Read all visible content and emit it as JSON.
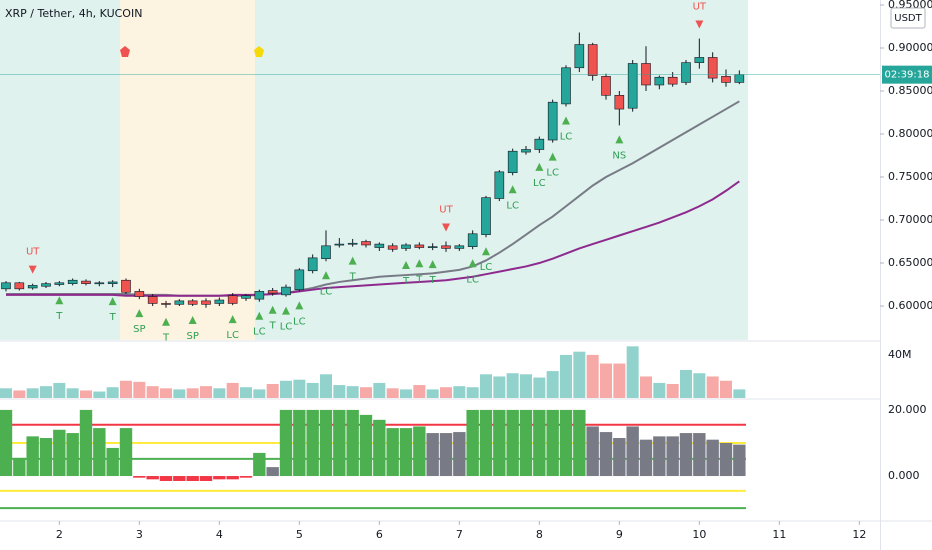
{
  "chart_data": {
    "type": "candlestick",
    "title": "XRP / Tether, 4h, KUCOIN",
    "currency": "USDT",
    "countdown": "02:39:18",
    "xlim": [
      -0.45,
      65.55
    ],
    "xticks": [
      {
        "value": 4,
        "label": "2"
      },
      {
        "value": 10,
        "label": "3"
      },
      {
        "value": 16,
        "label": "4"
      },
      {
        "value": 22,
        "label": "5"
      },
      {
        "value": 28,
        "label": "6"
      },
      {
        "value": 34,
        "label": "7"
      },
      {
        "value": 40,
        "label": "8"
      },
      {
        "value": 46,
        "label": "9"
      },
      {
        "value": 52,
        "label": "10"
      },
      {
        "value": 58,
        "label": "11"
      },
      {
        "value": 64,
        "label": "12"
      }
    ],
    "ylim": [
      0.5605,
      0.9558
    ],
    "yticks": [
      {
        "value": 0.95,
        "label": "0.95000"
      },
      {
        "value": 0.9,
        "label": "0.90000"
      },
      {
        "value": 0.85,
        "label": "0.85000"
      },
      {
        "value": 0.8,
        "label": "0.80000"
      },
      {
        "value": 0.75,
        "label": "0.75000"
      },
      {
        "value": 0.7,
        "label": "0.70000"
      },
      {
        "value": 0.65,
        "label": "0.65000"
      },
      {
        "value": 0.6,
        "label": "0.60000"
      }
    ],
    "up_color": "#26a69a",
    "down_color": "#ef5350",
    "open": [
      0.62,
      0.627,
      0.621,
      0.623,
      0.625,
      0.626,
      0.629,
      0.626,
      0.626,
      0.63,
      0.617,
      0.611,
      0.603,
      0.602,
      0.606,
      0.606,
      0.603,
      0.612,
      0.609,
      0.608,
      0.618,
      0.613,
      0.619,
      0.641,
      0.655,
      0.671,
      0.672,
      0.675,
      0.668,
      0.67,
      0.667,
      0.671,
      0.668,
      0.67,
      0.667,
      0.669,
      0.683,
      0.725,
      0.755,
      0.779,
      0.782,
      0.793,
      0.835,
      0.877,
      0.904,
      0.867,
      0.845,
      0.83,
      0.882,
      0.857,
      0.866,
      0.86,
      0.883,
      0.889,
      0.867,
      0.86
    ],
    "high": [
      0.629,
      0.628,
      0.626,
      0.628,
      0.629,
      0.632,
      0.631,
      0.629,
      0.63,
      0.632,
      0.62,
      0.614,
      0.606,
      0.608,
      0.608,
      0.609,
      0.61,
      0.615,
      0.614,
      0.619,
      0.621,
      0.625,
      0.644,
      0.66,
      0.688,
      0.679,
      0.678,
      0.677,
      0.674,
      0.673,
      0.673,
      0.674,
      0.673,
      0.675,
      0.672,
      0.688,
      0.728,
      0.758,
      0.783,
      0.786,
      0.797,
      0.84,
      0.88,
      0.918,
      0.906,
      0.87,
      0.85,
      0.886,
      0.902,
      0.868,
      0.872,
      0.886,
      0.911,
      0.895,
      0.875,
      0.874
    ],
    "low": [
      0.617,
      0.618,
      0.619,
      0.621,
      0.623,
      0.624,
      0.624,
      0.623,
      0.622,
      0.614,
      0.608,
      0.6,
      0.598,
      0.6,
      0.6,
      0.598,
      0.6,
      0.601,
      0.606,
      0.605,
      0.612,
      0.611,
      0.617,
      0.638,
      0.652,
      0.668,
      0.669,
      0.668,
      0.664,
      0.663,
      0.664,
      0.666,
      0.665,
      0.663,
      0.664,
      0.666,
      0.68,
      0.722,
      0.752,
      0.776,
      0.778,
      0.79,
      0.832,
      0.872,
      0.862,
      0.84,
      0.81,
      0.826,
      0.85,
      0.852,
      0.855,
      0.857,
      0.876,
      0.86,
      0.855,
      0.858
    ],
    "close": [
      0.627,
      0.62,
      0.624,
      0.626,
      0.627,
      0.63,
      0.626,
      0.627,
      0.628,
      0.616,
      0.611,
      0.603,
      0.602,
      0.606,
      0.602,
      0.602,
      0.607,
      0.603,
      0.612,
      0.617,
      0.615,
      0.622,
      0.642,
      0.656,
      0.67,
      0.672,
      0.673,
      0.671,
      0.672,
      0.666,
      0.671,
      0.668,
      0.669,
      0.667,
      0.67,
      0.684,
      0.726,
      0.756,
      0.78,
      0.782,
      0.794,
      0.837,
      0.877,
      0.904,
      0.868,
      0.845,
      0.829,
      0.882,
      0.857,
      0.866,
      0.858,
      0.883,
      0.889,
      0.865,
      0.86,
      0.869
    ],
    "moving_averages": [
      {
        "color": "#787b86",
        "values": [
          0.614,
          0.614,
          0.614,
          0.614,
          0.614,
          0.614,
          0.614,
          0.614,
          0.614,
          0.614,
          0.613,
          0.613,
          0.613,
          0.612,
          0.612,
          0.612,
          0.612,
          0.612,
          0.612,
          0.613,
          0.614,
          0.615,
          0.618,
          0.621,
          0.625,
          0.628,
          0.63,
          0.632,
          0.634,
          0.635,
          0.636,
          0.637,
          0.638,
          0.64,
          0.642,
          0.646,
          0.653,
          0.662,
          0.672,
          0.683,
          0.694,
          0.704,
          0.716,
          0.728,
          0.74,
          0.75,
          0.758,
          0.766,
          0.775,
          0.784,
          0.793,
          0.802,
          0.811,
          0.82,
          0.829,
          0.838
        ]
      },
      {
        "color": "#8e2a8e",
        "values": [
          0.613,
          0.613,
          0.613,
          0.613,
          0.613,
          0.613,
          0.613,
          0.613,
          0.613,
          0.612,
          0.612,
          0.612,
          0.612,
          0.612,
          0.612,
          0.612,
          0.612,
          0.613,
          0.613,
          0.613,
          0.614,
          0.615,
          0.617,
          0.619,
          0.621,
          0.622,
          0.623,
          0.624,
          0.625,
          0.626,
          0.627,
          0.628,
          0.629,
          0.63,
          0.632,
          0.634,
          0.637,
          0.64,
          0.643,
          0.646,
          0.65,
          0.655,
          0.661,
          0.667,
          0.672,
          0.677,
          0.682,
          0.687,
          0.692,
          0.697,
          0.703,
          0.709,
          0.716,
          0.724,
          0.734,
          0.745
        ]
      }
    ],
    "signals": [
      {
        "label": "UT",
        "index": 2,
        "position": "above"
      },
      {
        "label": "T",
        "index": 4,
        "position": "below"
      },
      {
        "label": "T",
        "index": 8,
        "position": "below"
      },
      {
        "label": "SP",
        "index": 10,
        "position": "below"
      },
      {
        "label": "T",
        "index": 12,
        "position": "below"
      },
      {
        "label": "SP",
        "index": 14,
        "position": "below"
      },
      {
        "label": "LC",
        "index": 17,
        "position": "below"
      },
      {
        "label": "LC",
        "index": 19,
        "position": "below"
      },
      {
        "label": "T",
        "index": 20,
        "position": "below"
      },
      {
        "label": "LC",
        "index": 21,
        "position": "below"
      },
      {
        "label": "LC",
        "index": 22,
        "position": "below"
      },
      {
        "label": "LC",
        "index": 24,
        "position": "below"
      },
      {
        "label": "T",
        "index": 26,
        "position": "below"
      },
      {
        "label": "T",
        "index": 30,
        "position": "below"
      },
      {
        "label": "T",
        "index": 31,
        "position": "below"
      },
      {
        "label": "T",
        "index": 32,
        "position": "below"
      },
      {
        "label": "UT",
        "index": 33,
        "position": "above"
      },
      {
        "label": "LC",
        "index": 35,
        "position": "below"
      },
      {
        "label": "LC",
        "index": 36,
        "position": "below"
      },
      {
        "label": "LC",
        "index": 38,
        "position": "below"
      },
      {
        "label": "LC",
        "index": 40,
        "position": "below"
      },
      {
        "label": "LC",
        "index": 41,
        "position": "below"
      },
      {
        "label": "LC",
        "index": 42,
        "position": "below"
      },
      {
        "label": "NS",
        "index": 46,
        "position": "below"
      },
      {
        "label": "UT",
        "index": 52,
        "position": "above"
      }
    ],
    "volume": {
      "values": [
        9000000,
        7000000,
        9000000,
        11000000,
        14000000,
        9000000,
        7000000,
        6000000,
        10000000,
        16000000,
        15000000,
        11000000,
        9000000,
        8000000,
        9000000,
        11000000,
        9000000,
        14000000,
        10000000,
        8000000,
        13000000,
        16000000,
        17000000,
        14000000,
        22000000,
        12000000,
        11000000,
        10000000,
        14000000,
        9000000,
        8000000,
        12000000,
        8000000,
        10000000,
        11000000,
        10000000,
        22000000,
        20000000,
        23000000,
        22000000,
        19000000,
        25000000,
        40000000,
        43000000,
        40000000,
        32000000,
        32000000,
        48000000,
        20000000,
        14000000,
        13000000,
        26000000,
        23000000,
        20000000,
        16000000,
        8000000
      ],
      "ylim": [
        0,
        52000000
      ],
      "yticks": [
        {
          "value": 40000000,
          "label": "40M"
        }
      ],
      "up_color": "#92d2cc",
      "down_color": "#f7a9a7"
    },
    "oscillator": {
      "values": [
        20,
        5.5,
        12,
        11.5,
        14,
        13,
        20,
        14.5,
        8.5,
        14.5,
        -0.5,
        -1,
        -1.5,
        -1.5,
        -1.5,
        -1.5,
        -1,
        -1,
        -0.5,
        7,
        2.7,
        20,
        20,
        20,
        20,
        20,
        20,
        18.5,
        17,
        14.5,
        14.5,
        15,
        13,
        13,
        13.3,
        20,
        20,
        20,
        20,
        20,
        20,
        20,
        20,
        20,
        15,
        13.3,
        11.5,
        15,
        11,
        12,
        12,
        13,
        13,
        11,
        10,
        9.5
      ],
      "colors": [
        "#4caf50",
        "#4caf50",
        "#4caf50",
        "#4caf50",
        "#4caf50",
        "#4caf50",
        "#4caf50",
        "#4caf50",
        "#4caf50",
        "#4caf50",
        "#f23645",
        "#f23645",
        "#f23645",
        "#f23645",
        "#f23645",
        "#f23645",
        "#f23645",
        "#f23645",
        "#f23645",
        "#4caf50",
        "#787b86",
        "#4caf50",
        "#4caf50",
        "#4caf50",
        "#4caf50",
        "#4caf50",
        "#4caf50",
        "#4caf50",
        "#4caf50",
        "#4caf50",
        "#4caf50",
        "#4caf50",
        "#787b86",
        "#787b86",
        "#787b86",
        "#4caf50",
        "#4caf50",
        "#4caf50",
        "#4caf50",
        "#4caf50",
        "#4caf50",
        "#4caf50",
        "#4caf50",
        "#4caf50",
        "#787b86",
        "#787b86",
        "#787b86",
        "#787b86",
        "#787b86",
        "#787b86",
        "#787b86",
        "#787b86",
        "#787b86",
        "#787b86",
        "#787b86",
        "#787b86"
      ],
      "ylim": [
        -13.3,
        23
      ],
      "yticks": [
        {
          "value": 20,
          "label": "20.000"
        },
        {
          "value": 0,
          "label": "0.000"
        }
      ],
      "levels": [
        {
          "value": 15.5,
          "color": "#f23645"
        },
        {
          "value": 10,
          "color": "#ffeb3b"
        },
        {
          "value": 5.2,
          "color": "#4caf50"
        },
        {
          "value": -4.5,
          "color": "#ffeb3b"
        },
        {
          "value": -9.7,
          "color": "#4caf50"
        }
      ]
    }
  }
}
